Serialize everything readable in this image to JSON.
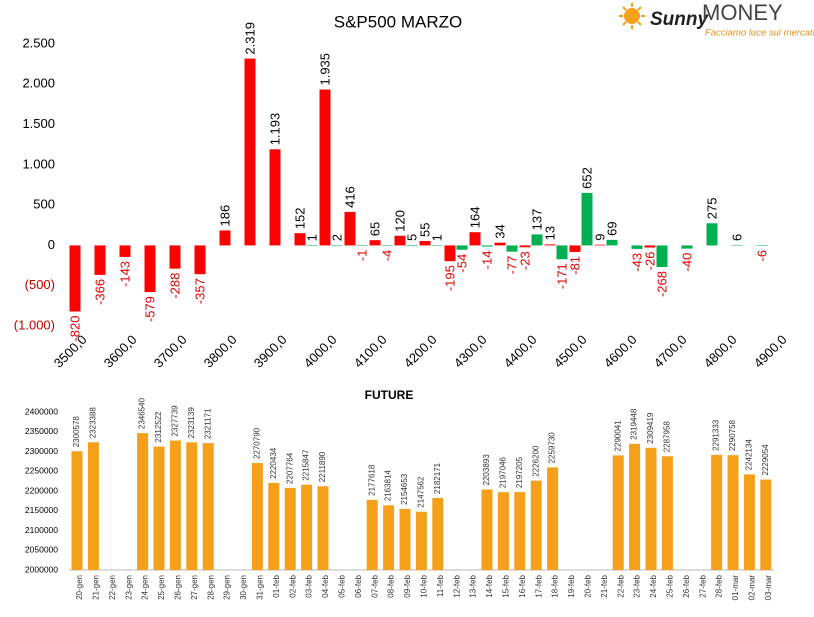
{
  "logo": {
    "brand": "Sunny",
    "name": "MONEY",
    "tagline": "Facciamo luce sui mercati"
  },
  "chart_data": [
    {
      "type": "bar",
      "title": "S&P500 MARZO",
      "categories": [
        "3500,0",
        null,
        "3600,0",
        null,
        "3700,0",
        null,
        "3800,0",
        null,
        "3900,0",
        null,
        "4000,0",
        null,
        "4100,0",
        null,
        "4200,0",
        null,
        "4300,0",
        null,
        "4400,0",
        null,
        "4500,0",
        null,
        "4600,0",
        null,
        "4700,0",
        null,
        "4800,0",
        null,
        "4900,0"
      ],
      "series": [
        {
          "color": "#ff0000",
          "values": [
            -820,
            -366,
            -143,
            -579,
            -288,
            -357,
            186,
            2319,
            1193,
            152,
            1935,
            416,
            65,
            120,
            55,
            -195,
            164,
            34,
            -23,
            13,
            -81,
            9,
            null,
            -26,
            null,
            null,
            null,
            null,
            null
          ],
          "value_labels": [
            "-820",
            "-366",
            "-143",
            "-579",
            "-288",
            "-357",
            "186",
            "2.319",
            "1.193",
            "152",
            "1.935",
            "416",
            "65",
            "120",
            "55",
            "-195",
            "164",
            "34",
            "-23",
            "13",
            "-81",
            "9",
            null,
            "-26",
            null,
            null,
            null,
            null,
            null
          ]
        },
        {
          "color": "#00b050",
          "values": [
            null,
            null,
            null,
            null,
            null,
            null,
            null,
            null,
            null,
            1,
            2,
            -1,
            -4,
            5,
            1,
            -54,
            -14,
            -77,
            137,
            -171,
            652,
            69,
            -43,
            -268,
            -40,
            275,
            6,
            -6,
            null
          ],
          "value_labels": [
            null,
            null,
            null,
            null,
            null,
            null,
            null,
            null,
            null,
            "1",
            "2",
            "-1",
            "-4",
            "5",
            "1",
            "-54",
            "-14",
            "-77",
            "137",
            "-171",
            "652",
            "69",
            "-43",
            "-268",
            "-40",
            "275",
            "6",
            "-6",
            null
          ]
        }
      ],
      "ylim": [
        -1000,
        2500
      ],
      "yticks": [
        {
          "value": -1000,
          "label": "(1.000)"
        },
        {
          "value": -500,
          "label": "(500)"
        },
        0,
        500,
        {
          "value": 1000,
          "label": "1.000"
        },
        {
          "value": 1500,
          "label": "1.500"
        },
        {
          "value": 2000,
          "label": "2.000"
        },
        {
          "value": 2500,
          "label": "2.500"
        }
      ],
      "grid": false
    },
    {
      "type": "bar",
      "title": "FUTURE",
      "color": "#f5a01a",
      "categories": [
        "20-gen",
        "21-gen",
        "22-gen",
        "23-gen",
        "24-gen",
        "25-gen",
        "26-gen",
        "27-gen",
        "28-gen",
        "29-gen",
        "30-gen",
        "31-gen",
        "01-feb",
        "02-feb",
        "03-feb",
        "04-feb",
        "05-feb",
        "06-feb",
        "07-feb",
        "08-feb",
        "09-feb",
        "10-feb",
        "11-feb",
        "12-feb",
        "13-feb",
        "14-feb",
        "15-feb",
        "16-feb",
        "17-feb",
        "18-feb",
        "19-feb",
        "20-feb",
        "21-feb",
        "22-feb",
        "23-feb",
        "24-feb",
        "25-feb",
        "26-feb",
        "27-feb",
        "28-feb",
        "01-mar",
        "02-mar",
        "03-mar"
      ],
      "values": [
        2300578,
        2323388,
        null,
        null,
        2346540,
        2312522,
        2327739,
        2323139,
        2321171,
        null,
        null,
        2270790,
        2220434,
        2207764,
        2215847,
        2211890,
        null,
        null,
        2177618,
        2163814,
        2154653,
        2147562,
        2182171,
        null,
        null,
        2203893,
        2197046,
        2197205,
        2226200,
        2259730,
        null,
        null,
        null,
        2290041,
        2319448,
        2309419,
        2287958,
        null,
        null,
        2291333,
        2290758,
        2242134,
        2229054
      ],
      "ylim": [
        2000000,
        2400000
      ],
      "yticks": [
        2000000,
        2050000,
        2100000,
        2150000,
        2200000,
        2250000,
        2300000,
        2350000,
        2400000
      ],
      "grid": false
    }
  ]
}
